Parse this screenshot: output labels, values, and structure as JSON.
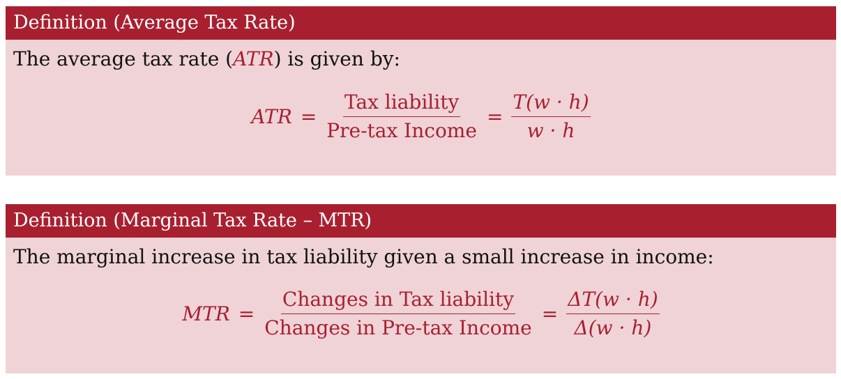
{
  "atr": {
    "header": "Definition (Average Tax Rate)",
    "text_before": "The average tax rate (",
    "text_var": "ATR",
    "text_after": ") is given by:",
    "lhs": "ATR",
    "equals": "=",
    "frac1_num": "Tax liability",
    "frac1_den": "Pre-tax Income",
    "frac2_num": "T(w · h)",
    "frac2_den": "w · h"
  },
  "mtr": {
    "header": "Definition (Marginal Tax Rate – MTR)",
    "text": "The marginal increase in tax liability given a small increase in income:",
    "lhs": "MTR",
    "equals": "=",
    "frac1_num": "Changes in Tax liability",
    "frac1_den": "Changes in Pre-tax Income",
    "frac2_num": "ΔT(w · h)",
    "frac2_den": "Δ(w · h)"
  },
  "colors": {
    "header_bg": "#a82030",
    "body_bg": "#efd3d7",
    "accent": "#a82030"
  }
}
